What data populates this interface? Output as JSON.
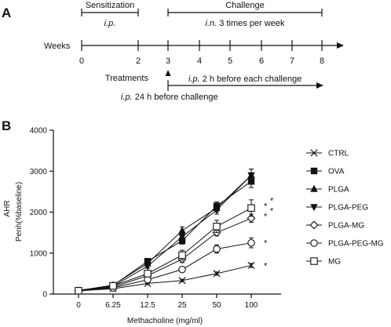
{
  "panelA": {
    "label": "A",
    "weeks_label": "Weeks",
    "ticks": [
      "0",
      "2",
      "3",
      "4",
      "5",
      "6",
      "7",
      "8"
    ],
    "sensitization": {
      "title": "Sensitization",
      "route": "i.p."
    },
    "challenge": {
      "title": "Challenge",
      "route": "i.n.",
      "schedule": "3 times per week"
    },
    "treatments_label": "Treatments",
    "treatment_before_challenge": {
      "route": "i.p.",
      "text": "2 h before each challenge"
    },
    "treatment_pre": {
      "route": "i.p.",
      "text": "24 h before challenge"
    }
  },
  "panelB": {
    "label": "B"
  },
  "chart_data": {
    "type": "line",
    "categories": [
      "0",
      "6.25",
      "12.5",
      "25",
      "50",
      "100"
    ],
    "xlabel": "Methacholine (mg/ml)",
    "ylabel_top": "AHR",
    "ylabel": "Penh(%baseline)",
    "ylim": [
      0,
      4000
    ],
    "yticks": [
      "0",
      "1000",
      "2000",
      "3000",
      "4000"
    ],
    "grid": false,
    "legend_position": "right",
    "series": [
      {
        "name": "CTRL",
        "marker": "x",
        "values": [
          80,
          130,
          260,
          330,
          500,
          700
        ],
        "errors": [
          20,
          20,
          30,
          30,
          40,
          50
        ],
        "significance": "*"
      },
      {
        "name": "OVA",
        "marker": "square-filled",
        "values": [
          90,
          210,
          800,
          1300,
          2150,
          2750
        ],
        "errors": [
          20,
          40,
          60,
          80,
          100,
          150
        ],
        "significance": ""
      },
      {
        "name": "PLGA",
        "marker": "triangle-up-filled",
        "values": [
          80,
          220,
          750,
          1550,
          2100,
          2900
        ],
        "errors": [
          20,
          40,
          60,
          90,
          100,
          150
        ],
        "significance": ""
      },
      {
        "name": "PLGA-PEG",
        "marker": "triangle-down-filled",
        "values": [
          85,
          190,
          680,
          1400,
          2050,
          2900
        ],
        "errors": [
          20,
          30,
          50,
          80,
          100,
          150
        ],
        "significance": ""
      },
      {
        "name": "PLGA-MG",
        "marker": "diamond-open",
        "values": [
          80,
          170,
          450,
          850,
          1500,
          1850
        ],
        "errors": [
          20,
          30,
          50,
          80,
          80,
          100
        ],
        "significance": "**"
      },
      {
        "name": "PLGA-PEG-MG",
        "marker": "circle-open",
        "values": [
          80,
          150,
          350,
          600,
          1100,
          1250
        ],
        "errors": [
          20,
          30,
          40,
          60,
          100,
          120
        ],
        "significance": "*"
      },
      {
        "name": "MG",
        "marker": "square-open",
        "values": [
          80,
          200,
          500,
          950,
          1650,
          2100
        ],
        "errors": [
          20,
          40,
          60,
          120,
          150,
          200
        ],
        "significance": "**"
      }
    ]
  }
}
